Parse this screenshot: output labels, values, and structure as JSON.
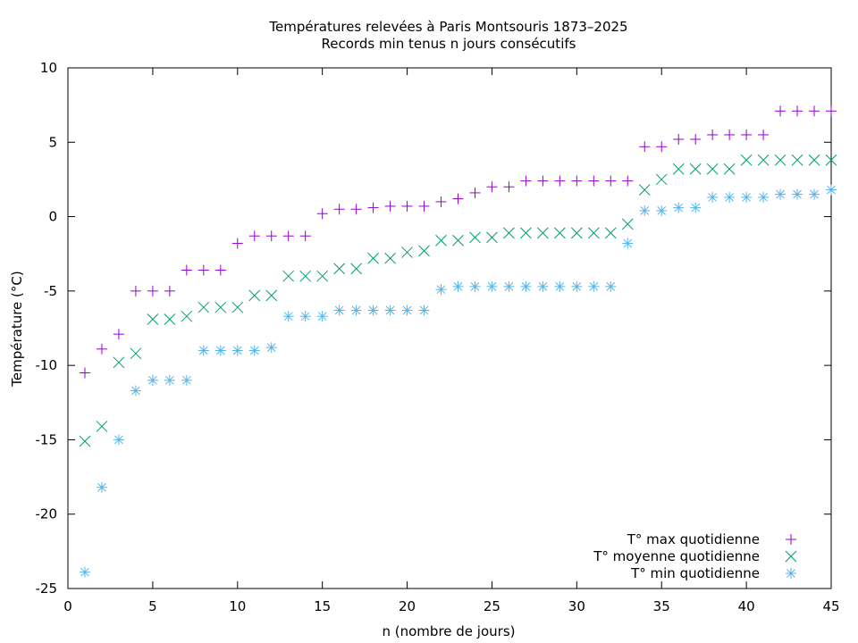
{
  "chart_data": {
    "type": "scatter",
    "title": "Températures relevées à Paris Montsouris 1873–2025",
    "subtitle": "Records min tenus n jours consécutifs",
    "xlabel": "n (nombre de jours)",
    "ylabel": "Température (°C)",
    "xlim": [
      0,
      45
    ],
    "ylim": [
      -25,
      10
    ],
    "xticks": [
      0,
      5,
      10,
      15,
      20,
      25,
      30,
      35,
      40,
      45
    ],
    "yticks": [
      -25,
      -20,
      -15,
      -10,
      -5,
      0,
      5,
      10
    ],
    "grid": false,
    "legend_position": "bottom-right",
    "x": [
      1,
      2,
      3,
      4,
      5,
      6,
      7,
      8,
      9,
      10,
      11,
      12,
      13,
      14,
      15,
      16,
      17,
      18,
      19,
      20,
      21,
      22,
      23,
      24,
      25,
      26,
      27,
      28,
      29,
      30,
      31,
      32,
      33,
      34,
      35,
      36,
      37,
      38,
      39,
      40,
      41,
      42,
      43,
      44,
      45
    ],
    "series": [
      {
        "name": "T° max quotidienne",
        "marker": "plus",
        "color": "#9400d3",
        "values": [
          -10.5,
          -8.9,
          -7.9,
          -5.0,
          -5.0,
          -5.0,
          -3.6,
          -3.6,
          -3.6,
          -1.8,
          -1.3,
          -1.3,
          -1.3,
          -1.3,
          0.2,
          0.5,
          0.5,
          0.6,
          0.7,
          0.7,
          0.7,
          1.0,
          1.2,
          1.6,
          2.0,
          2.0,
          2.4,
          2.4,
          2.4,
          2.4,
          2.4,
          2.4,
          2.4,
          4.7,
          4.7,
          5.2,
          5.2,
          5.5,
          5.5,
          5.5,
          5.5,
          7.1,
          7.1,
          7.1,
          7.1
        ]
      },
      {
        "name": "T° moyenne quotidienne",
        "marker": "cross",
        "color": "#009e73",
        "values": [
          -15.1,
          -14.1,
          -9.8,
          -9.2,
          -6.9,
          -6.9,
          -6.7,
          -6.1,
          -6.1,
          -6.1,
          -5.3,
          -5.3,
          -4.0,
          -4.0,
          -4.0,
          -3.5,
          -3.5,
          -2.8,
          -2.8,
          -2.4,
          -2.3,
          -1.6,
          -1.6,
          -1.4,
          -1.4,
          -1.1,
          -1.1,
          -1.1,
          -1.1,
          -1.1,
          -1.1,
          -1.1,
          -0.5,
          1.8,
          2.5,
          3.2,
          3.2,
          3.2,
          3.2,
          3.8,
          3.8,
          3.8,
          3.8,
          3.8,
          3.8
        ]
      },
      {
        "name": "T° min quotidienne",
        "marker": "star",
        "color": "#56b4e9",
        "values": [
          -23.9,
          -18.2,
          -15.0,
          -11.7,
          -11.0,
          -11.0,
          -11.0,
          -9.0,
          -9.0,
          -9.0,
          -9.0,
          -8.8,
          -6.7,
          -6.7,
          -6.7,
          -6.3,
          -6.3,
          -6.3,
          -6.3,
          -6.3,
          -6.3,
          -4.9,
          -4.7,
          -4.7,
          -4.7,
          -4.7,
          -4.7,
          -4.7,
          -4.7,
          -4.7,
          -4.7,
          -4.7,
          -1.8,
          0.4,
          0.4,
          0.6,
          0.6,
          1.3,
          1.3,
          1.3,
          1.3,
          1.5,
          1.5,
          1.5,
          1.8
        ]
      }
    ]
  }
}
